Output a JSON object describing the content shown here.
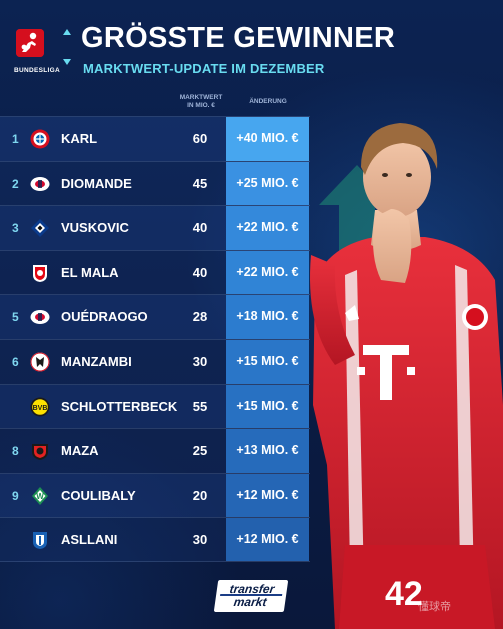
{
  "header": {
    "logo_text": "BUNDESLIGA",
    "title": "GRÖSSTE GEWINNER",
    "subtitle": "MARKTWERT-UPDATE IM DEZEMBER"
  },
  "columns": {
    "market_value_line1": "MARKTWERT",
    "market_value_line2": "IN MIO. €",
    "change": "ÄNDERUNG"
  },
  "rows": [
    {
      "rank": "1",
      "club_icon": "fc-bayern-crest-icon",
      "name": "KARL",
      "value": "60",
      "change": "+40 MIO. €"
    },
    {
      "rank": "2",
      "club_icon": "rb-leipzig-crest-icon",
      "name": "DIOMANDE",
      "value": "45",
      "change": "+25 MIO. €"
    },
    {
      "rank": "3",
      "club_icon": "hamburger-sv-crest-icon",
      "name": "VUSKOVIC",
      "value": "40",
      "change": "+22 MIO. €"
    },
    {
      "rank": "",
      "club_icon": "fc-koeln-crest-icon",
      "name": "EL MALA",
      "value": "40",
      "change": "+22 MIO. €"
    },
    {
      "rank": "5",
      "club_icon": "rb-leipzig-crest-icon",
      "name": "OUÉDRAOGO",
      "value": "28",
      "change": "+18 MIO. €"
    },
    {
      "rank": "6",
      "club_icon": "sc-freiburg-crest-icon",
      "name": "MANZAMBI",
      "value": "30",
      "change": "+15 MIO. €"
    },
    {
      "rank": "",
      "club_icon": "borussia-dortmund-crest-icon",
      "name": "SCHLOTTERBECK",
      "value": "55",
      "change": "+15 MIO. €"
    },
    {
      "rank": "8",
      "club_icon": "bayer-leverkusen-crest-icon",
      "name": "MAZA",
      "value": "25",
      "change": "+13 MIO. €"
    },
    {
      "rank": "9",
      "club_icon": "werder-bremen-crest-icon",
      "name": "COULIBALY",
      "value": "20",
      "change": "+12 MIO. €"
    },
    {
      "rank": "",
      "club_icon": "hoffenheim-crest-icon",
      "name": "ASLLANI",
      "value": "30",
      "change": "+12 MIO. €"
    }
  ],
  "player": {
    "shirt_number": "42",
    "sponsor": "T"
  },
  "footer": {
    "logo_line1": "transfer",
    "logo_line2": "markt",
    "watermark": "懂球帝"
  },
  "colors": {
    "background": "#0b1a3a",
    "accent": "#69dcf0",
    "change_cell": "#2f7fd6",
    "shirt": "#d81f2e"
  }
}
